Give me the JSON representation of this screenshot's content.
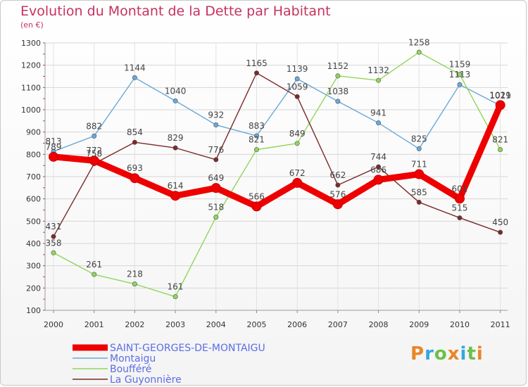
{
  "header": {
    "title": "Evolution du Montant de la Dette par Habitant",
    "unit": "(en €)"
  },
  "logo": {
    "text": "Proxiti",
    "letters": [
      "P",
      "r",
      "o",
      "x",
      "i",
      "t",
      "i"
    ],
    "colors": [
      "#e8862a",
      "#35a7e0",
      "#6cc04a",
      "#e8862a",
      "#35a7e0",
      "#6cc04a",
      "#e8862a"
    ]
  },
  "chart_data": {
    "type": "line",
    "title": "Evolution du Montant de la Dette par Habitant",
    "subtitle": "(en €)",
    "xlabel": "",
    "ylabel": "",
    "x": [
      "2000",
      "2001",
      "2002",
      "2003",
      "2004",
      "2005",
      "2006",
      "2007",
      "2008",
      "2009",
      "2010",
      "2011"
    ],
    "ylim": [
      100,
      1300
    ],
    "yticks": [
      100,
      200,
      300,
      400,
      500,
      600,
      700,
      800,
      900,
      1000,
      1100,
      1200,
      1300
    ],
    "grid": true,
    "legend_position": "bottom-left",
    "series": [
      {
        "name": "SAINT-GEORGES-DE-MONTAIGU",
        "color": "#ee0000",
        "values": [
          789,
          772,
          693,
          614,
          649,
          566,
          672,
          576,
          686,
          711,
          601,
          1021
        ]
      },
      {
        "name": "Montaigu",
        "color": "#6aa8d8",
        "values": [
          813,
          882,
          1144,
          1040,
          932,
          883,
          1139,
          1038,
          941,
          825,
          1113,
          1019
        ]
      },
      {
        "name": "Boufféré",
        "color": "#8fd65b",
        "values": [
          358,
          261,
          218,
          161,
          518,
          821,
          849,
          1152,
          1132,
          1258,
          1159,
          821
        ]
      },
      {
        "name": "La Guyonnière",
        "color": "#7a2a2a",
        "values": [
          431,
          758,
          854,
          829,
          776,
          1165,
          1059,
          662,
          744,
          585,
          515,
          450
        ]
      }
    ]
  }
}
